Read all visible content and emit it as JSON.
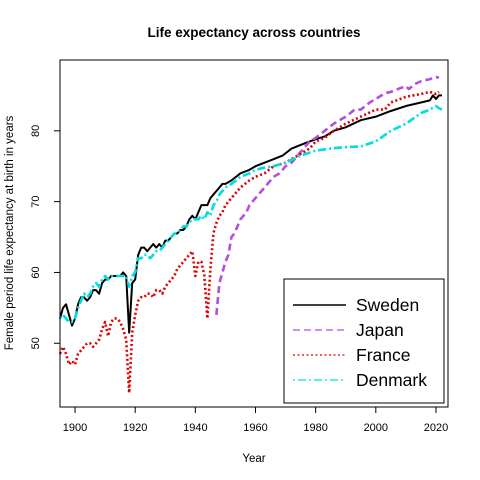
{
  "chart_data": {
    "type": "line",
    "title": "Life expectancy across countries",
    "xlabel": "Year",
    "ylabel": "Female period life expectancy at birth in years",
    "xlim": [
      1895,
      2024
    ],
    "ylim": [
      41,
      90
    ],
    "x_ticks": [
      1900,
      1920,
      1940,
      1960,
      1980,
      2000,
      2020
    ],
    "y_ticks": [
      50,
      60,
      70,
      80
    ],
    "legend_position": "bottom-right",
    "series": [
      {
        "name": "Sweden",
        "color": "#000000",
        "dash": "solid",
        "points": [
          [
            1895,
            53.5
          ],
          [
            1896,
            55.0
          ],
          [
            1897,
            55.5
          ],
          [
            1898,
            54.0
          ],
          [
            1899,
            52.5
          ],
          [
            1900,
            53.5
          ],
          [
            1901,
            55.5
          ],
          [
            1902,
            56.5
          ],
          [
            1903,
            56.5
          ],
          [
            1904,
            56.0
          ],
          [
            1905,
            56.5
          ],
          [
            1906,
            57.5
          ],
          [
            1907,
            57.5
          ],
          [
            1908,
            57.0
          ],
          [
            1909,
            58.5
          ],
          [
            1910,
            59.0
          ],
          [
            1911,
            59.0
          ],
          [
            1912,
            59.5
          ],
          [
            1913,
            59.5
          ],
          [
            1914,
            59.5
          ],
          [
            1915,
            59.5
          ],
          [
            1916,
            60.0
          ],
          [
            1917,
            59.5
          ],
          [
            1918,
            51.5
          ],
          [
            1919,
            58.5
          ],
          [
            1920,
            59.0
          ],
          [
            1921,
            62.5
          ],
          [
            1922,
            63.5
          ],
          [
            1923,
            63.5
          ],
          [
            1924,
            63.0
          ],
          [
            1925,
            63.5
          ],
          [
            1926,
            64.0
          ],
          [
            1927,
            63.5
          ],
          [
            1928,
            64.0
          ],
          [
            1929,
            63.5
          ],
          [
            1930,
            64.5
          ],
          [
            1931,
            64.5
          ],
          [
            1932,
            65.0
          ],
          [
            1933,
            65.5
          ],
          [
            1934,
            65.5
          ],
          [
            1935,
            66.0
          ],
          [
            1936,
            66.0
          ],
          [
            1937,
            66.5
          ],
          [
            1938,
            67.5
          ],
          [
            1939,
            68.0
          ],
          [
            1940,
            67.5
          ],
          [
            1941,
            68.5
          ],
          [
            1942,
            69.5
          ],
          [
            1943,
            69.5
          ],
          [
            1944,
            69.5
          ],
          [
            1945,
            70.5
          ],
          [
            1946,
            71.0
          ],
          [
            1947,
            71.5
          ],
          [
            1948,
            72.0
          ],
          [
            1949,
            72.5
          ],
          [
            1950,
            72.5
          ],
          [
            1952,
            73.0
          ],
          [
            1955,
            74.0
          ],
          [
            1958,
            74.5
          ],
          [
            1960,
            75.0
          ],
          [
            1963,
            75.5
          ],
          [
            1966,
            76.0
          ],
          [
            1969,
            76.5
          ],
          [
            1972,
            77.5
          ],
          [
            1975,
            78.0
          ],
          [
            1978,
            78.5
          ],
          [
            1980,
            78.8
          ],
          [
            1983,
            79.2
          ],
          [
            1986,
            80.0
          ],
          [
            1990,
            80.5
          ],
          [
            1995,
            81.5
          ],
          [
            2000,
            82.0
          ],
          [
            2005,
            82.8
          ],
          [
            2010,
            83.5
          ],
          [
            2015,
            84.0
          ],
          [
            2018,
            84.3
          ],
          [
            2019,
            85.0
          ],
          [
            2020,
            84.5
          ],
          [
            2021,
            85.0
          ],
          [
            2022,
            85.0
          ]
        ]
      },
      {
        "name": "Japan",
        "color": "#b04fe0",
        "dash": "dashed",
        "points": [
          [
            1947,
            54.0
          ],
          [
            1948,
            58.5
          ],
          [
            1949,
            60.0
          ],
          [
            1950,
            61.5
          ],
          [
            1951,
            62.5
          ],
          [
            1952,
            65.0
          ],
          [
            1953,
            65.5
          ],
          [
            1954,
            66.5
          ],
          [
            1955,
            67.5
          ],
          [
            1956,
            68.0
          ],
          [
            1957,
            68.5
          ],
          [
            1958,
            69.5
          ],
          [
            1959,
            70.0
          ],
          [
            1960,
            70.5
          ],
          [
            1962,
            71.5
          ],
          [
            1964,
            72.5
          ],
          [
            1966,
            73.5
          ],
          [
            1968,
            74.0
          ],
          [
            1970,
            75.0
          ],
          [
            1972,
            75.5
          ],
          [
            1974,
            76.5
          ],
          [
            1976,
            77.5
          ],
          [
            1978,
            78.5
          ],
          [
            1980,
            79.0
          ],
          [
            1983,
            80.0
          ],
          [
            1986,
            81.0
          ],
          [
            1990,
            82.0
          ],
          [
            1993,
            83.0
          ],
          [
            1995,
            83.0
          ],
          [
            1998,
            84.0
          ],
          [
            2000,
            84.5
          ],
          [
            2003,
            85.3
          ],
          [
            2005,
            85.5
          ],
          [
            2008,
            86.0
          ],
          [
            2010,
            86.3
          ],
          [
            2011,
            85.9
          ],
          [
            2013,
            86.6
          ],
          [
            2015,
            87.0
          ],
          [
            2018,
            87.3
          ],
          [
            2020,
            87.6
          ],
          [
            2021,
            87.5
          ]
        ]
      },
      {
        "name": "France",
        "color": "#dd0000",
        "dash": "dotted",
        "points": [
          [
            1895,
            48.5
          ],
          [
            1896,
            49.5
          ],
          [
            1897,
            48.5
          ],
          [
            1898,
            47.0
          ],
          [
            1899,
            47.5
          ],
          [
            1900,
            47.0
          ],
          [
            1901,
            48.5
          ],
          [
            1902,
            49.0
          ],
          [
            1903,
            49.5
          ],
          [
            1904,
            50.0
          ],
          [
            1905,
            50.0
          ],
          [
            1906,
            49.5
          ],
          [
            1907,
            50.0
          ],
          [
            1908,
            50.5
          ],
          [
            1909,
            52.0
          ],
          [
            1910,
            53.0
          ],
          [
            1911,
            51.0
          ],
          [
            1912,
            53.0
          ],
          [
            1913,
            53.5
          ],
          [
            1914,
            53.5
          ],
          [
            1915,
            53.0
          ],
          [
            1916,
            52.0
          ],
          [
            1917,
            50.5
          ],
          [
            1918,
            43.0
          ],
          [
            1919,
            51.5
          ],
          [
            1920,
            54.0
          ],
          [
            1921,
            56.0
          ],
          [
            1922,
            56.5
          ],
          [
            1923,
            56.5
          ],
          [
            1924,
            57.0
          ],
          [
            1925,
            57.0
          ],
          [
            1926,
            56.5
          ],
          [
            1927,
            57.5
          ],
          [
            1928,
            57.5
          ],
          [
            1929,
            57.0
          ],
          [
            1930,
            58.0
          ],
          [
            1931,
            58.5
          ],
          [
            1932,
            59.0
          ],
          [
            1933,
            59.5
          ],
          [
            1934,
            60.5
          ],
          [
            1935,
            61.0
          ],
          [
            1936,
            61.5
          ],
          [
            1937,
            62.0
          ],
          [
            1938,
            62.5
          ],
          [
            1939,
            63.0
          ],
          [
            1940,
            59.5
          ],
          [
            1941,
            61.5
          ],
          [
            1942,
            61.5
          ],
          [
            1943,
            59.5
          ],
          [
            1944,
            53.5
          ],
          [
            1945,
            60.5
          ],
          [
            1946,
            65.5
          ],
          [
            1947,
            67.0
          ],
          [
            1948,
            68.0
          ],
          [
            1949,
            68.5
          ],
          [
            1950,
            69.5
          ],
          [
            1952,
            70.5
          ],
          [
            1955,
            72.0
          ],
          [
            1958,
            73.0
          ],
          [
            1960,
            73.5
          ],
          [
            1963,
            74.0
          ],
          [
            1966,
            75.0
          ],
          [
            1970,
            75.5
          ],
          [
            1974,
            76.5
          ],
          [
            1978,
            77.5
          ],
          [
            1980,
            78.5
          ],
          [
            1983,
            79.0
          ],
          [
            1986,
            80.0
          ],
          [
            1990,
            81.0
          ],
          [
            1995,
            82.0
          ],
          [
            2000,
            83.0
          ],
          [
            2003,
            83.0
          ],
          [
            2005,
            84.0
          ],
          [
            2010,
            84.8
          ],
          [
            2015,
            85.2
          ],
          [
            2018,
            85.5
          ],
          [
            2020,
            85.2
          ],
          [
            2021,
            85.5
          ]
        ]
      },
      {
        "name": "Denmark",
        "color": "#00dddd",
        "dash": "dotdash",
        "points": [
          [
            1895,
            53.5
          ],
          [
            1896,
            54.0
          ],
          [
            1897,
            53.5
          ],
          [
            1898,
            53.0
          ],
          [
            1899,
            53.0
          ],
          [
            1900,
            53.5
          ],
          [
            1901,
            55.0
          ],
          [
            1902,
            56.0
          ],
          [
            1903,
            57.0
          ],
          [
            1904,
            56.5
          ],
          [
            1905,
            57.0
          ],
          [
            1906,
            58.0
          ],
          [
            1907,
            58.5
          ],
          [
            1908,
            58.0
          ],
          [
            1909,
            59.0
          ],
          [
            1910,
            59.5
          ],
          [
            1911,
            59.0
          ],
          [
            1912,
            59.5
          ],
          [
            1913,
            59.5
          ],
          [
            1914,
            59.5
          ],
          [
            1915,
            59.5
          ],
          [
            1916,
            59.5
          ],
          [
            1917,
            59.5
          ],
          [
            1918,
            58.0
          ],
          [
            1919,
            59.5
          ],
          [
            1920,
            60.0
          ],
          [
            1921,
            62.0
          ],
          [
            1922,
            62.0
          ],
          [
            1923,
            62.5
          ],
          [
            1924,
            62.5
          ],
          [
            1925,
            62.0
          ],
          [
            1926,
            62.5
          ],
          [
            1927,
            63.0
          ],
          [
            1928,
            63.0
          ],
          [
            1929,
            63.5
          ],
          [
            1930,
            64.0
          ],
          [
            1931,
            64.5
          ],
          [
            1932,
            65.0
          ],
          [
            1933,
            65.5
          ],
          [
            1934,
            65.5
          ],
          [
            1935,
            66.0
          ],
          [
            1936,
            66.5
          ],
          [
            1937,
            66.5
          ],
          [
            1938,
            67.0
          ],
          [
            1939,
            67.5
          ],
          [
            1940,
            67.5
          ],
          [
            1941,
            67.5
          ],
          [
            1942,
            68.0
          ],
          [
            1943,
            67.5
          ],
          [
            1944,
            68.5
          ],
          [
            1945,
            68.0
          ],
          [
            1946,
            69.5
          ],
          [
            1947,
            70.0
          ],
          [
            1948,
            71.0
          ],
          [
            1949,
            71.5
          ],
          [
            1950,
            72.0
          ],
          [
            1952,
            72.5
          ],
          [
            1955,
            73.5
          ],
          [
            1958,
            74.0
          ],
          [
            1960,
            74.5
          ],
          [
            1963,
            74.8
          ],
          [
            1966,
            75.0
          ],
          [
            1970,
            75.5
          ],
          [
            1975,
            76.5
          ],
          [
            1980,
            77.2
          ],
          [
            1985,
            77.5
          ],
          [
            1990,
            77.7
          ],
          [
            1995,
            77.8
          ],
          [
            2000,
            78.5
          ],
          [
            2005,
            80.0
          ],
          [
            2010,
            81.0
          ],
          [
            2015,
            82.5
          ],
          [
            2018,
            83.0
          ],
          [
            2020,
            83.5
          ],
          [
            2021,
            83.2
          ],
          [
            2022,
            83.0
          ]
        ]
      }
    ]
  }
}
